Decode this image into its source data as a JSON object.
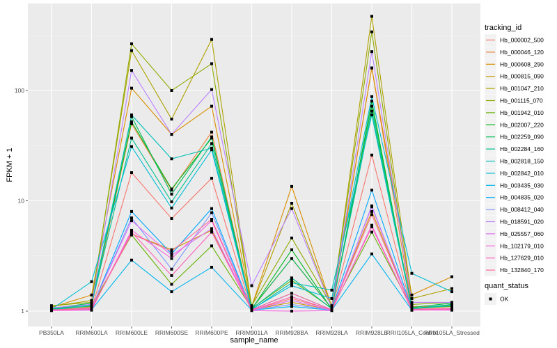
{
  "chart_data": {
    "type": "line",
    "title": "",
    "xlabel": "sample_name",
    "ylabel": "FPKM + 1",
    "yscale": "log10",
    "ylim": [
      0.85,
      520
    ],
    "yticks": [
      1,
      10,
      100
    ],
    "ytick_labels": [
      "1",
      "10",
      "100"
    ],
    "grid": true,
    "categories": [
      "PB350LA",
      "RRIM600LA",
      "RRIM600LE",
      "RRIM600SE",
      "RRIM600PE",
      "RRIM901LA",
      "RRIM928BA",
      "RRIM928LA",
      "RRIM928LB",
      "RRII105LA_Control",
      "RRII105LA_Stressed"
    ],
    "legend_title": "tracking_id",
    "legend_position": "right",
    "series": [
      {
        "name": "Hb_000002_500",
        "color": "#F8766D",
        "values": [
          1.02,
          1.04,
          18.0,
          6.9,
          16.0,
          1.02,
          1.3,
          1.03,
          26.0,
          1.03,
          1.05
        ]
      },
      {
        "name": "Hb_000046_120",
        "color": "#EC8239",
        "values": [
          1.05,
          1.1,
          50.0,
          12.5,
          42.0,
          1.05,
          3.0,
          1.05,
          160.0,
          1.1,
          1.1
        ]
      },
      {
        "name": "Hb_000608_290",
        "color": "#DB8E00",
        "values": [
          1.08,
          1.4,
          105.0,
          40.0,
          72.0,
          1.1,
          13.5,
          1.1,
          160.0,
          1.4,
          2.05
        ]
      },
      {
        "name": "Hb_000815_090",
        "color": "#C79800",
        "values": [
          1.03,
          1.08,
          5.0,
          3.6,
          5.4,
          1.03,
          1.2,
          1.03,
          8.0,
          1.05,
          1.1
        ]
      },
      {
        "name": "Hb_001047_210",
        "color": "#AEA200",
        "values": [
          1.1,
          1.25,
          230.0,
          55.0,
          290.0,
          1.1,
          9.5,
          1.1,
          470.0,
          1.3,
          1.6
        ]
      },
      {
        "name": "Hb_001115_070",
        "color": "#8FAA00",
        "values": [
          1.12,
          1.2,
          265.0,
          100.0,
          175.0,
          1.12,
          4.6,
          1.12,
          340.0,
          1.15,
          1.2
        ]
      },
      {
        "name": "Hb_001942_010",
        "color": "#64B200",
        "values": [
          1.06,
          1.1,
          4.9,
          1.75,
          3.9,
          1.06,
          1.9,
          1.06,
          5.2,
          1.07,
          1.1
        ]
      },
      {
        "name": "Hb_002007_220",
        "color": "#00B81B",
        "values": [
          1.04,
          1.15,
          52.0,
          12.8,
          37.0,
          1.04,
          3.6,
          1.04,
          80.0,
          1.05,
          1.15
        ]
      },
      {
        "name": "Hb_002259_090",
        "color": "#00BD5C",
        "values": [
          1.06,
          1.18,
          58.0,
          11.5,
          38.0,
          1.06,
          3.0,
          1.06,
          72.0,
          1.08,
          1.18
        ]
      },
      {
        "name": "Hb_002284_160",
        "color": "#00C08E",
        "values": [
          1.05,
          1.14,
          37.0,
          9.8,
          33.0,
          1.05,
          2.0,
          1.05,
          65.0,
          1.06,
          1.14
        ]
      },
      {
        "name": "Hb_002818_150",
        "color": "#00C1B7",
        "values": [
          1.03,
          1.12,
          60.0,
          24.0,
          30.0,
          1.03,
          1.8,
          1.55,
          60.0,
          1.05,
          1.12
        ]
      },
      {
        "name": "Hb_002842_010",
        "color": "#00BDD4",
        "values": [
          1.04,
          1.85,
          31.0,
          8.6,
          29.0,
          1.04,
          1.7,
          1.3,
          88.0,
          2.2,
          1.5
        ]
      },
      {
        "name": "Hb_003435_030",
        "color": "#00B5EE",
        "values": [
          1.02,
          1.03,
          2.9,
          1.5,
          2.5,
          1.02,
          1.1,
          1.02,
          3.3,
          1.02,
          1.03
        ]
      },
      {
        "name": "Hb_004835_020",
        "color": "#00A7FF",
        "values": [
          1.03,
          1.05,
          8.0,
          3.3,
          8.5,
          1.03,
          1.45,
          1.03,
          12.5,
          1.04,
          1.05
        ]
      },
      {
        "name": "Hb_008412_040",
        "color": "#7F96FF",
        "values": [
          1.02,
          1.06,
          7.0,
          2.4,
          7.8,
          1.02,
          1.15,
          1.02,
          9.0,
          1.03,
          1.05
        ]
      },
      {
        "name": "Hb_018591_020",
        "color": "#BC81FF",
        "values": [
          1.07,
          1.15,
          152.0,
          40.0,
          102.0,
          1.7,
          8.5,
          1.07,
          225.0,
          1.2,
          1.2
        ]
      },
      {
        "name": "Hb_025557_060",
        "color": "#E26EF7",
        "values": [
          1.02,
          1.07,
          6.6,
          3.2,
          5.6,
          1.02,
          1.25,
          1.02,
          8.8,
          1.03,
          1.06
        ]
      },
      {
        "name": "Hb_102179_010",
        "color": "#F863DF",
        "values": [
          1.01,
          1.02,
          5.4,
          3.0,
          6.6,
          1.01,
          1.0,
          1.01,
          6.0,
          1.02,
          1.02
        ]
      },
      {
        "name": "Hb_127629_010",
        "color": "#FF62BC",
        "values": [
          1.02,
          1.04,
          5.2,
          2.1,
          5.2,
          1.02,
          1.35,
          1.02,
          5.8,
          1.03,
          1.04
        ]
      },
      {
        "name": "Hb_132840_170",
        "color": "#FF6A98",
        "values": [
          1.03,
          1.05,
          5.0,
          3.5,
          6.8,
          1.03,
          1.45,
          1.03,
          7.5,
          1.04,
          1.06
        ]
      }
    ],
    "point_legend_title": "quant_status",
    "point_legend_entries": [
      {
        "label": "OK",
        "marker": "square",
        "color": "#000000"
      }
    ]
  }
}
